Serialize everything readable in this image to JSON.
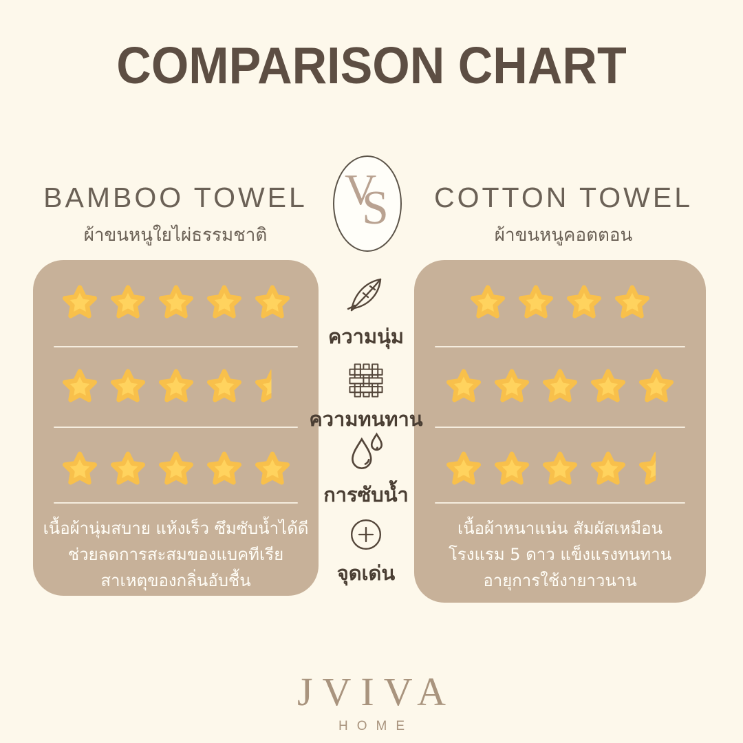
{
  "page": {
    "title": "COMPARISON CHART"
  },
  "colors": {
    "background": "#FDF8EB",
    "title": "#5D4E43",
    "heading": "#6B6156",
    "panel": "#C7B199",
    "star_fill": "#FFD35E",
    "star_edge": "#F8C04B",
    "icon_stroke": "#54463A",
    "label": "#4A3E33",
    "vs_letters": "#B9A291",
    "description": "#FFFDF6",
    "logo": "#A9947E"
  },
  "vs_badge": {
    "letter_v": "V",
    "letter_s": "S"
  },
  "products": {
    "left": {
      "name": "BAMBOO TOWEL",
      "subtitle": "ผ้าขนหนูใยไผ่ธรรมชาติ",
      "ratings": {
        "softness": 5,
        "durability": 4.5,
        "absorbency": 5
      },
      "highlight_lines": {
        "0": "เนื้อผ้านุ่มสบาย แห้งเร็ว ซึมซับน้ำได้ดี",
        "1": "ช่วยลดการสะสมของแบคทีเรีย",
        "2": "สาเหตุของกลิ่นอับชื้น"
      }
    },
    "right": {
      "name": "COTTON TOWEL",
      "subtitle": "ผ้าขนหนูคอตตอน",
      "ratings": {
        "softness": 4,
        "durability": 5,
        "absorbency": 4.5
      },
      "highlight_lines": {
        "0": "เนื้อผ้าหนาแน่น สัมผัสเหมือน",
        "1": "โรงแรม 5 ดาว แข็งแรงทนทาน",
        "2": "อายุการใช้งายาวนาน"
      }
    }
  },
  "criteria": [
    {
      "icon": "feather-icon",
      "label": "ความนุ่ม"
    },
    {
      "icon": "weave-icon",
      "label": "ความทนทาน"
    },
    {
      "icon": "water-drops-icon",
      "label": "การซับน้ำ"
    },
    {
      "icon": "plus-circle-icon",
      "label": "จุดเด่น"
    }
  ],
  "logo": {
    "brand": "JVIVA",
    "sub": "HOME"
  },
  "chart_data": {
    "type": "table",
    "title": "COMPARISON CHART",
    "categories": [
      "ความนุ่ม",
      "ความทนทาน",
      "การซับน้ำ"
    ],
    "highlight_row_label": "จุดเด่น",
    "max_rating": 5,
    "series": [
      {
        "name": "BAMBOO TOWEL",
        "values": [
          5,
          4.5,
          5
        ]
      },
      {
        "name": "COTTON TOWEL",
        "values": [
          4,
          5,
          4.5
        ]
      }
    ],
    "notes": {
      "BAMBOO TOWEL": "เนื้อผ้านุ่มสบาย แห้งเร็ว ซึมซับน้ำได้ดี ช่วยลดการสะสมของแบคทีเรีย สาเหตุของกลิ่นอับชื้น",
      "COTTON TOWEL": "เนื้อผ้าหนาแน่น สัมผัสเหมือน โรงแรม 5 ดาว แข็งแรงทนทาน อายุการใช้งายาวนาน"
    }
  }
}
